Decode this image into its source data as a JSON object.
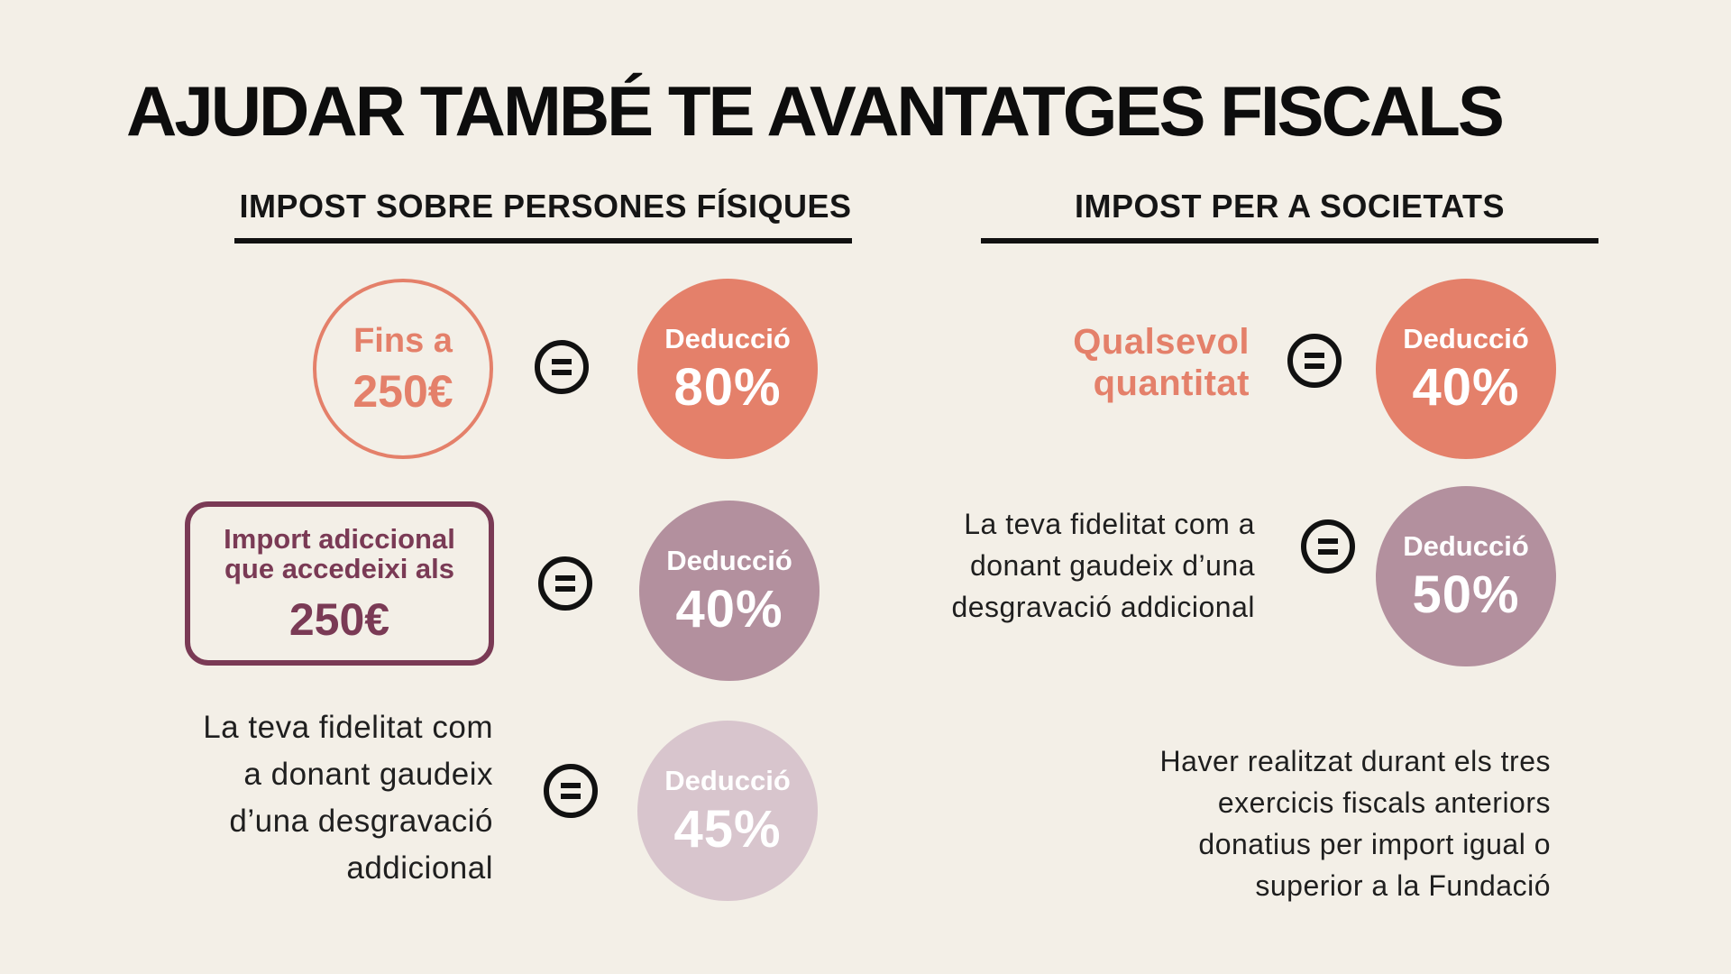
{
  "title": "AJUDAR TAMBÉ TE AVANTATGES FISCALS",
  "left": {
    "heading": "IMPOST SOBRE PERSONES FÍSIQUES",
    "row1": {
      "amount_line1": "Fins a",
      "amount_line2": "250€",
      "deduction_label": "Deducció",
      "deduction_pct": "80%"
    },
    "row2": {
      "box_line1": "Import adiccional",
      "box_line2": "que accedeixi als",
      "box_line3": "250€",
      "deduction_label": "Deducció",
      "deduction_pct": "40%"
    },
    "row3": {
      "text_lines": [
        "La teva fidelitat com",
        "a donant gaudeix",
        "d’una desgravació",
        "addicional"
      ],
      "deduction_label": "Deducció",
      "deduction_pct": "45%"
    }
  },
  "right": {
    "heading": "IMPOST PER A SOCIETATS",
    "row1": {
      "amount_line1": "Qualsevol",
      "amount_line2": "quantitat",
      "deduction_label": "Deducció",
      "deduction_pct": "40%"
    },
    "row2": {
      "text_lines": [
        "La teva fidelitat com a",
        "donant gaudeix d’una",
        "desgravació addicional"
      ],
      "deduction_label": "Deducció",
      "deduction_pct": "50%"
    },
    "note_lines": [
      "Haver realitzat durant els tres",
      "exercicis fiscals anteriors",
      "donatius per import igual o",
      "superior a la Fundació"
    ]
  },
  "colors": {
    "background": "#f3efe7",
    "orange": "#e4806a",
    "mauve": "#b3909e",
    "light_mauve": "#d8c5cd",
    "plum": "#7a3a55"
  },
  "icons": {
    "equals": "equals-circle-icon"
  }
}
